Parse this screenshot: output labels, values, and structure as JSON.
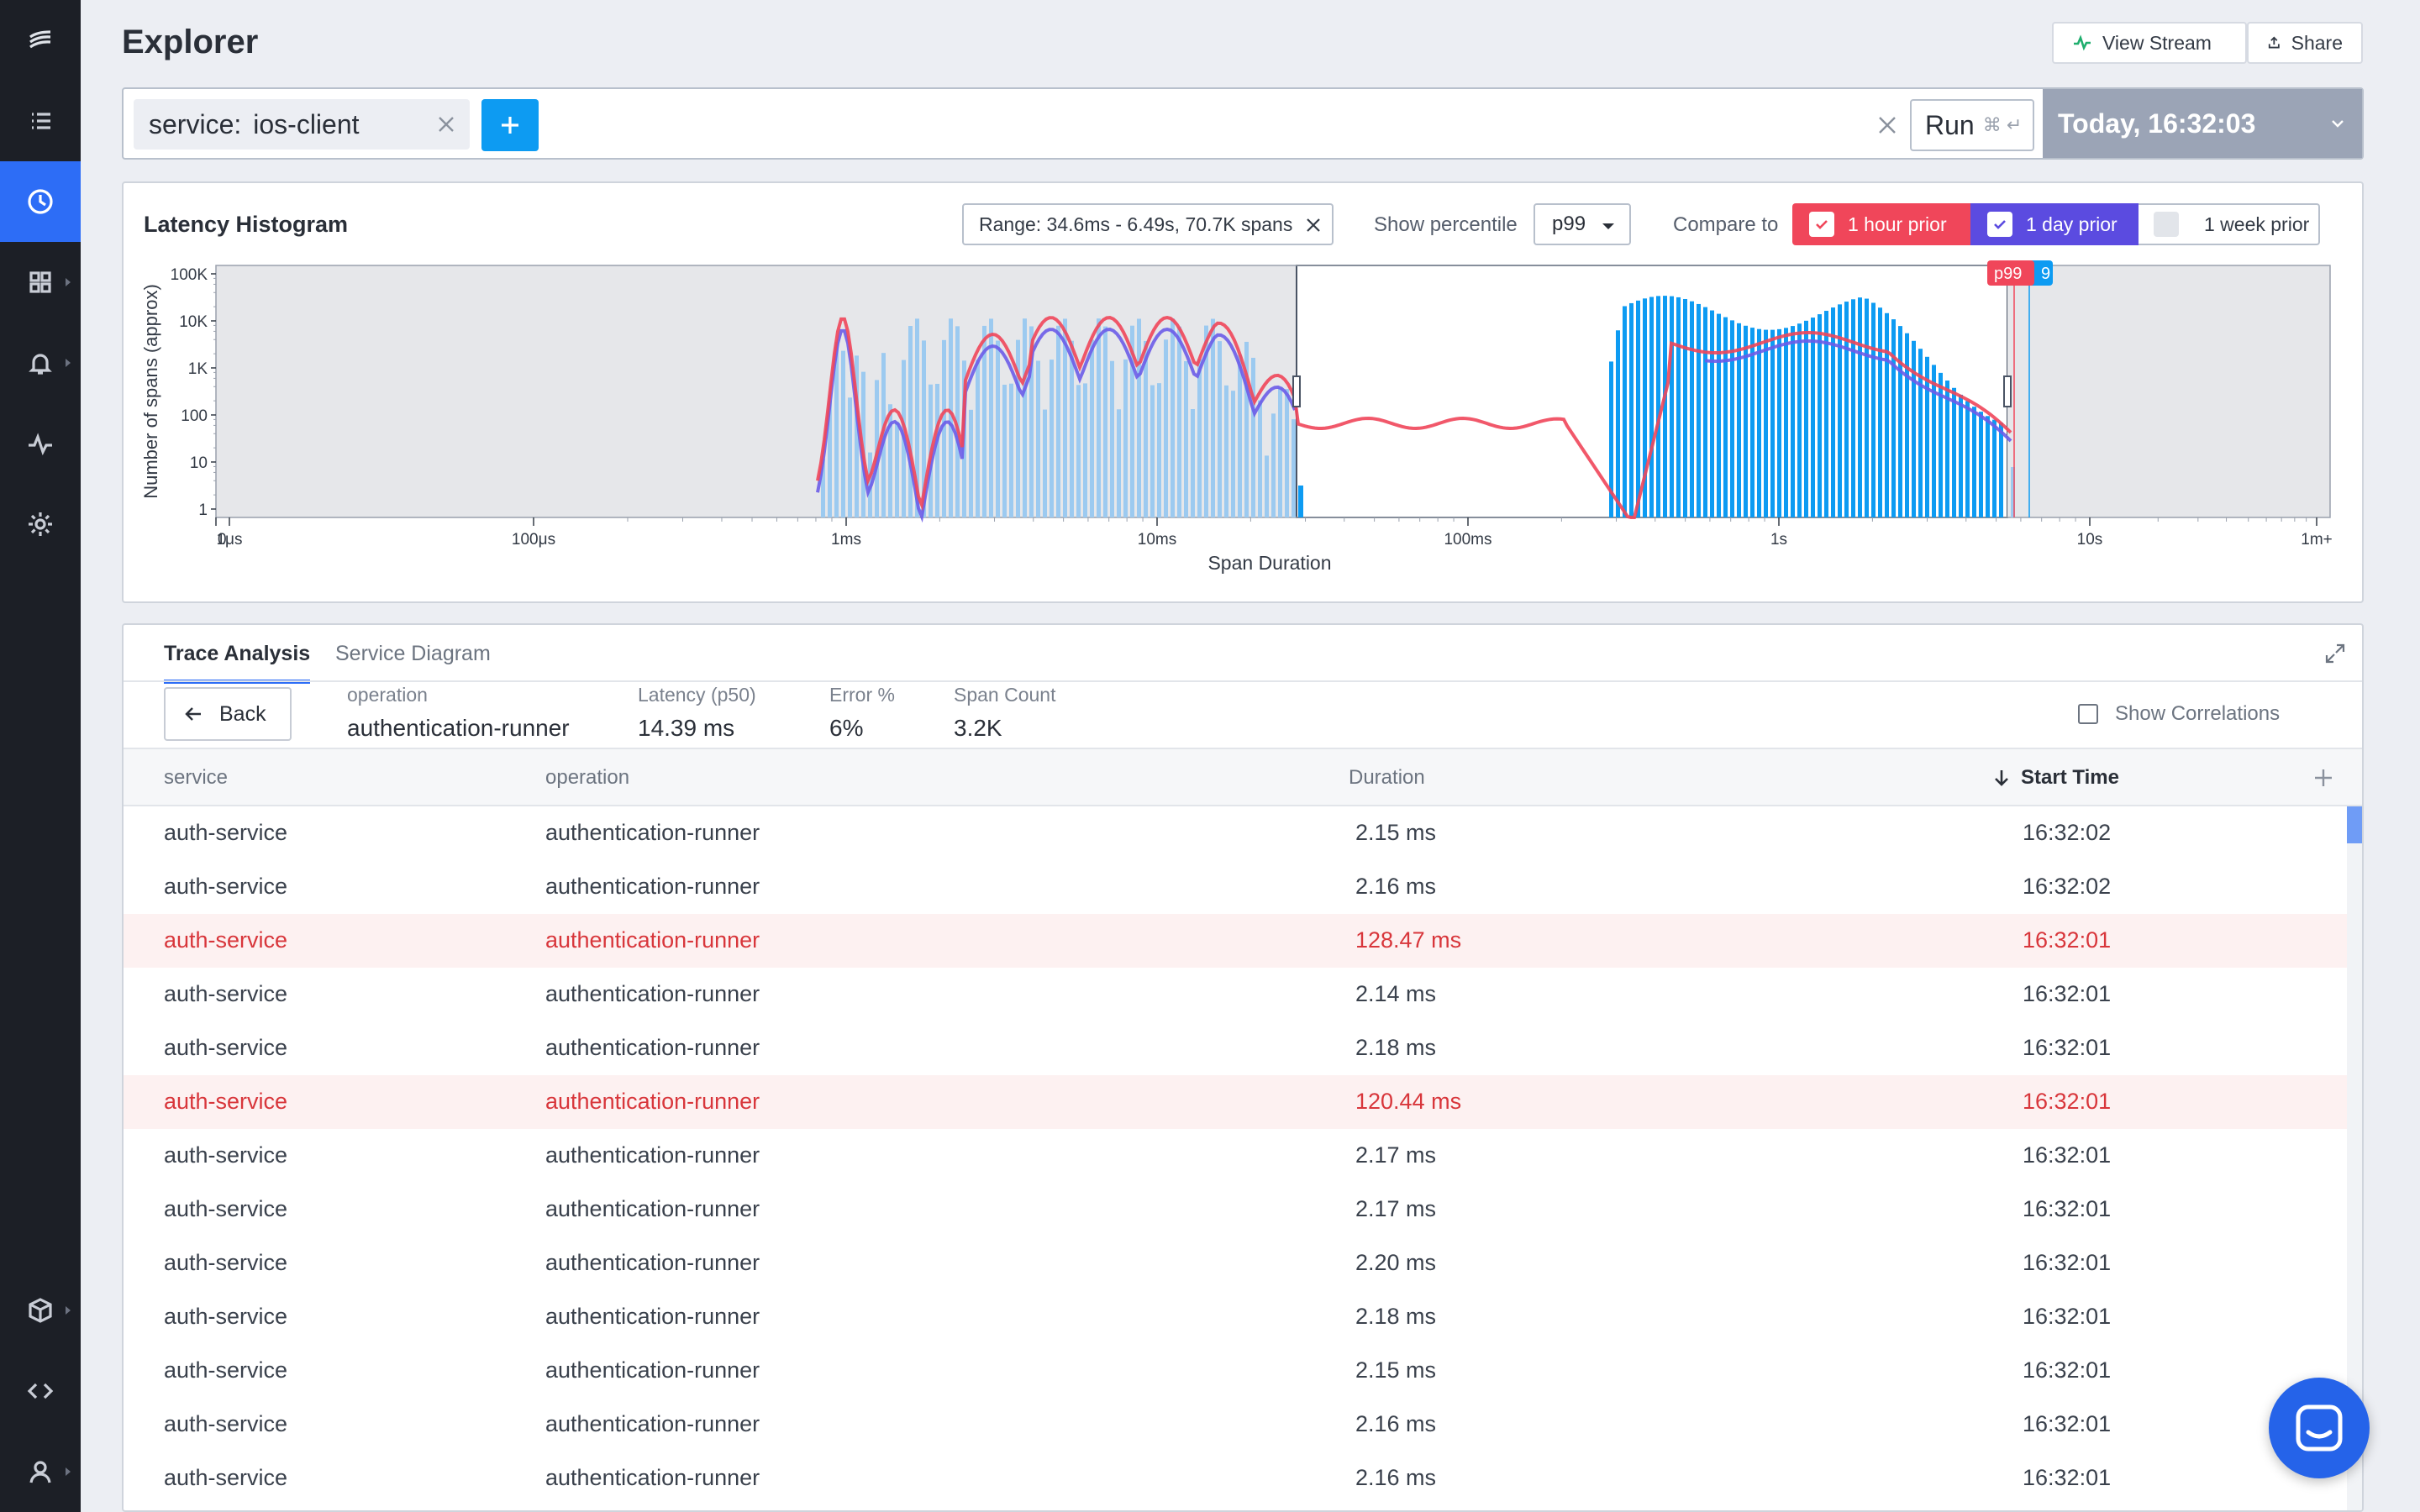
{
  "header": {
    "title": "Explorer",
    "view_stream": "View Stream",
    "share": "Share"
  },
  "query": {
    "chip_key": "service:",
    "chip_value": "ios-client",
    "run": "Run",
    "run_shortcut": "⌘ ↵",
    "time": "Today, 16:32:03"
  },
  "histogram": {
    "title": "Latency Histogram",
    "range": "Range: 34.6ms - 6.49s, 70.7K spans",
    "show_percentile": "Show percentile",
    "percentile": "p99",
    "compare_to": "Compare to",
    "compare": [
      {
        "label": "1 hour prior",
        "checked": true,
        "color": "#f0465a"
      },
      {
        "label": "1 day prior",
        "checked": true,
        "color": "#5b4be0"
      },
      {
        "label": "1 week prior",
        "checked": false,
        "color": "#ffffff"
      }
    ],
    "marker_label": "p99",
    "marker_label_2": "9"
  },
  "chart_data": {
    "type": "bar",
    "xlabel": "Span Duration",
    "ylabel": "Number of spans (approx)",
    "x_scale": "log",
    "y_scale": "log",
    "x_ticks": [
      "0",
      "1μs",
      "100μs",
      "1ms",
      "10ms",
      "100ms",
      "1s",
      "10s",
      "1m+"
    ],
    "y_ticks": [
      "100K",
      "10K",
      "1K",
      "100",
      "10",
      "1"
    ],
    "selected_range": [
      "34.6ms",
      "6.49s"
    ],
    "series": [
      {
        "name": "1 hour prior",
        "type": "line",
        "color": "#f0465a"
      },
      {
        "name": "1 day prior",
        "type": "line",
        "color": "#5b4be0"
      }
    ]
  },
  "trace": {
    "tabs": [
      "Trace Analysis",
      "Service Diagram"
    ],
    "back": "Back",
    "stats": [
      {
        "label": "operation",
        "value": "authentication-runner"
      },
      {
        "label": "Latency (p50)",
        "value": "14.39 ms"
      },
      {
        "label": "Error %",
        "value": "6%"
      },
      {
        "label": "Span Count",
        "value": "3.2K"
      }
    ],
    "show_correlations": "Show Correlations",
    "columns": [
      "service",
      "operation",
      "Duration",
      "Start Time"
    ],
    "rows": [
      {
        "service": "auth-service",
        "operation": "authentication-runner",
        "duration": "2.15 ms",
        "start": "16:32:02",
        "error": false
      },
      {
        "service": "auth-service",
        "operation": "authentication-runner",
        "duration": "2.16 ms",
        "start": "16:32:02",
        "error": false
      },
      {
        "service": "auth-service",
        "operation": "authentication-runner",
        "duration": "128.47 ms",
        "start": "16:32:01",
        "error": true
      },
      {
        "service": "auth-service",
        "operation": "authentication-runner",
        "duration": "2.14 ms",
        "start": "16:32:01",
        "error": false
      },
      {
        "service": "auth-service",
        "operation": "authentication-runner",
        "duration": "2.18 ms",
        "start": "16:32:01",
        "error": false
      },
      {
        "service": "auth-service",
        "operation": "authentication-runner",
        "duration": "120.44 ms",
        "start": "16:32:01",
        "error": true
      },
      {
        "service": "auth-service",
        "operation": "authentication-runner",
        "duration": "2.17 ms",
        "start": "16:32:01",
        "error": false
      },
      {
        "service": "auth-service",
        "operation": "authentication-runner",
        "duration": "2.17 ms",
        "start": "16:32:01",
        "error": false
      },
      {
        "service": "auth-service",
        "operation": "authentication-runner",
        "duration": "2.20 ms",
        "start": "16:32:01",
        "error": false
      },
      {
        "service": "auth-service",
        "operation": "authentication-runner",
        "duration": "2.18 ms",
        "start": "16:32:01",
        "error": false
      },
      {
        "service": "auth-service",
        "operation": "authentication-runner",
        "duration": "2.15 ms",
        "start": "16:32:01",
        "error": false
      },
      {
        "service": "auth-service",
        "operation": "authentication-runner",
        "duration": "2.16 ms",
        "start": "16:32:01",
        "error": false
      },
      {
        "service": "auth-service",
        "operation": "authentication-runner",
        "duration": "2.16 ms",
        "start": "16:32:01",
        "error": false
      }
    ]
  },
  "nav": {
    "items": [
      "logo-icon",
      "list-icon",
      "clock-icon",
      "grid-icon",
      "bell-icon",
      "pulse-icon",
      "gear-icon",
      "cube-icon",
      "code-icon",
      "user-icon"
    ],
    "active": "clock-icon"
  }
}
